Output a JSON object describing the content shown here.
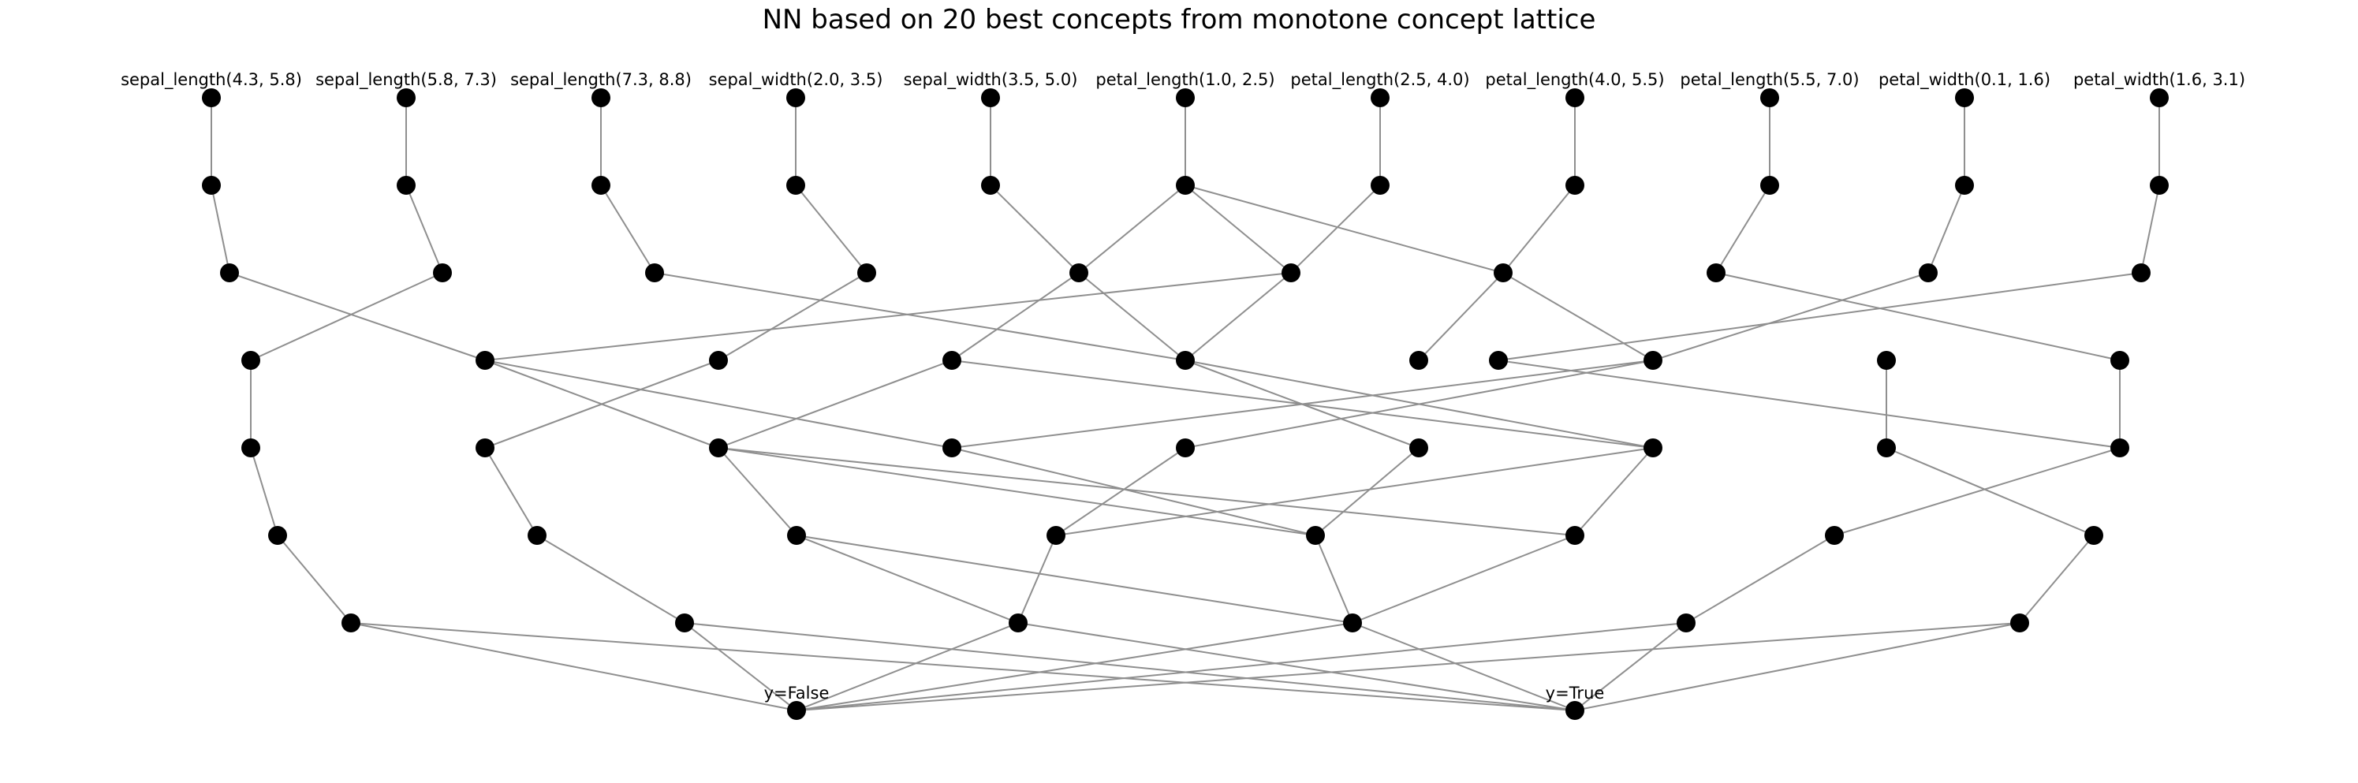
{
  "title": "NN based on 20 best concepts from monotone concept lattice",
  "inputs": [
    "sepal_length(4.3, 5.8)",
    "sepal_length(5.8, 7.3)",
    "sepal_length(7.3, 8.8)",
    "sepal_width(2.0, 3.5)",
    "sepal_width(3.5, 5.0)",
    "petal_length(1.0, 2.5)",
    "petal_length(2.5, 4.0)",
    "petal_length(4.0, 5.5)",
    "petal_length(5.5, 7.0)",
    "petal_width(0.1, 1.6)",
    "petal_width(1.6, 3.1)"
  ],
  "outputs": [
    "y=False",
    "y=True"
  ],
  "layers": [
    [
      "sepal_length(4.3, 5.8)",
      "sepal_length(5.8, 7.3)",
      "sepal_length(7.3, 8.8)",
      "sepal_width(2.0, 3.5)",
      "sepal_width(3.5, 5.0)",
      "petal_length(1.0, 2.5)",
      "petal_length(2.5, 4.0)",
      "petal_length(4.0, 5.5)",
      "petal_length(5.5, 7.0)",
      "petal_width(0.1, 1.6)",
      "petal_width(1.6, 3.1)"
    ],
    [
      "1a",
      "1b",
      "1c",
      "1d",
      "1e",
      "1f",
      "1g",
      "1h",
      "1i",
      "1j",
      "1k"
    ],
    [
      "2a",
      "2b",
      "2c",
      "2d",
      "2e",
      "2f",
      "2g",
      "2h",
      "2i",
      "2j"
    ],
    [
      "3a",
      "3b",
      "3c",
      "3d",
      "3e",
      "3f",
      "3g",
      "3h",
      "3i",
      "3j"
    ],
    [
      "4a",
      "4b",
      "4c",
      "4d",
      "4e",
      "4f",
      "4g",
      "4h",
      "4i"
    ],
    [
      "5a",
      "5b",
      "5c",
      "5d",
      "5e",
      "5f",
      "5g",
      "5h"
    ],
    [
      "6a",
      "6b",
      "6c",
      "6d",
      "6e",
      "6f"
    ],
    [
      "y=False",
      "y=True"
    ]
  ],
  "edges": [
    [
      "sepal_length(4.3, 5.8)",
      "1a"
    ],
    [
      "sepal_length(5.8, 7.3)",
      "1b"
    ],
    [
      "sepal_length(7.3, 8.8)",
      "1c"
    ],
    [
      "sepal_width(2.0, 3.5)",
      "1d"
    ],
    [
      "sepal_width(3.5, 5.0)",
      "1e"
    ],
    [
      "petal_length(1.0, 2.5)",
      "1f"
    ],
    [
      "petal_length(2.5, 4.0)",
      "1g"
    ],
    [
      "petal_length(4.0, 5.5)",
      "1h"
    ],
    [
      "petal_length(5.5, 7.0)",
      "1i"
    ],
    [
      "petal_width(0.1, 1.6)",
      "1j"
    ],
    [
      "petal_width(1.6, 3.1)",
      "1k"
    ],
    [
      "1a",
      "2a"
    ],
    [
      "1b",
      "2b"
    ],
    [
      "1c",
      "2c"
    ],
    [
      "1d",
      "2d"
    ],
    [
      "1e",
      "2e"
    ],
    [
      "1f",
      "2e"
    ],
    [
      "1f",
      "2f"
    ],
    [
      "1f",
      "2g"
    ],
    [
      "1g",
      "2f"
    ],
    [
      "1h",
      "2g"
    ],
    [
      "1i",
      "2h"
    ],
    [
      "1j",
      "2i"
    ],
    [
      "1k",
      "2j"
    ],
    [
      "2a",
      "3b"
    ],
    [
      "2b",
      "3a"
    ],
    [
      "2c",
      "3e"
    ],
    [
      "2d",
      "3c"
    ],
    [
      "2e",
      "3d"
    ],
    [
      "2e",
      "3e"
    ],
    [
      "2f",
      "3b"
    ],
    [
      "2f",
      "3e"
    ],
    [
      "2g",
      "3f"
    ],
    [
      "2g",
      "3g"
    ],
    [
      "2h",
      "3i"
    ],
    [
      "2i",
      "3g"
    ],
    [
      "2j",
      "3j"
    ],
    [
      "3a",
      "4a"
    ],
    [
      "3b",
      "4c"
    ],
    [
      "3b",
      "4d"
    ],
    [
      "3c",
      "4b"
    ],
    [
      "3d",
      "4c"
    ],
    [
      "3d",
      "4g"
    ],
    [
      "3e",
      "4f"
    ],
    [
      "3e",
      "4g"
    ],
    [
      "3g",
      "4d"
    ],
    [
      "3g",
      "4e"
    ],
    [
      "3h",
      "4h"
    ],
    [
      "3i",
      "4i"
    ],
    [
      "3j",
      "4i"
    ],
    [
      "4a",
      "5a"
    ],
    [
      "4b",
      "5b"
    ],
    [
      "4c",
      "5c"
    ],
    [
      "4c",
      "5e"
    ],
    [
      "4c",
      "5f"
    ],
    [
      "4d",
      "5e"
    ],
    [
      "4e",
      "5d"
    ],
    [
      "4f",
      "5e"
    ],
    [
      "4g",
      "5d"
    ],
    [
      "4g",
      "5f"
    ],
    [
      "4h",
      "5h"
    ],
    [
      "4i",
      "5g"
    ],
    [
      "5a",
      "6a"
    ],
    [
      "5b",
      "6b"
    ],
    [
      "5c",
      "6c"
    ],
    [
      "5c",
      "6d"
    ],
    [
      "5d",
      "6c"
    ],
    [
      "5e",
      "6d"
    ],
    [
      "5f",
      "6d"
    ],
    [
      "5g",
      "6e"
    ],
    [
      "5h",
      "6f"
    ],
    [
      "6a",
      "y=False"
    ],
    [
      "6a",
      "y=True"
    ],
    [
      "6b",
      "y=False"
    ],
    [
      "6b",
      "y=True"
    ],
    [
      "6c",
      "y=False"
    ],
    [
      "6c",
      "y=True"
    ],
    [
      "6d",
      "y=False"
    ],
    [
      "6d",
      "y=True"
    ],
    [
      "6e",
      "y=False"
    ],
    [
      "6e",
      "y=True"
    ],
    [
      "6f",
      "y=False"
    ],
    [
      "6f",
      "y=True"
    ]
  ]
}
